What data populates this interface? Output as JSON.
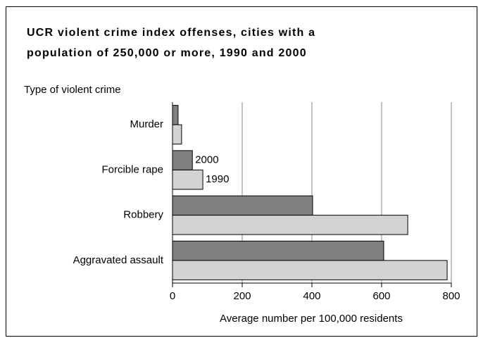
{
  "chart_data": {
    "type": "hbar",
    "title": [
      "UCR violent crime index offenses, cities with a",
      "population of 250,000 or more, 1990 and 2000"
    ],
    "y_label": "Type of violent crime",
    "x_label": "Average number per 100,000 residents",
    "categories": [
      "Murder",
      "Forcible rape",
      "Robbery",
      "Aggravated assault"
    ],
    "series": [
      {
        "name": "2000",
        "color": "#808080",
        "values": [
          16,
          57,
          402,
          606
        ]
      },
      {
        "name": "1990",
        "color": "#d3d3d3",
        "values": [
          26,
          87,
          675,
          788
        ]
      }
    ],
    "xlim": [
      0,
      800
    ],
    "xticks": [
      0,
      200,
      400,
      600,
      800
    ],
    "grid": true
  }
}
